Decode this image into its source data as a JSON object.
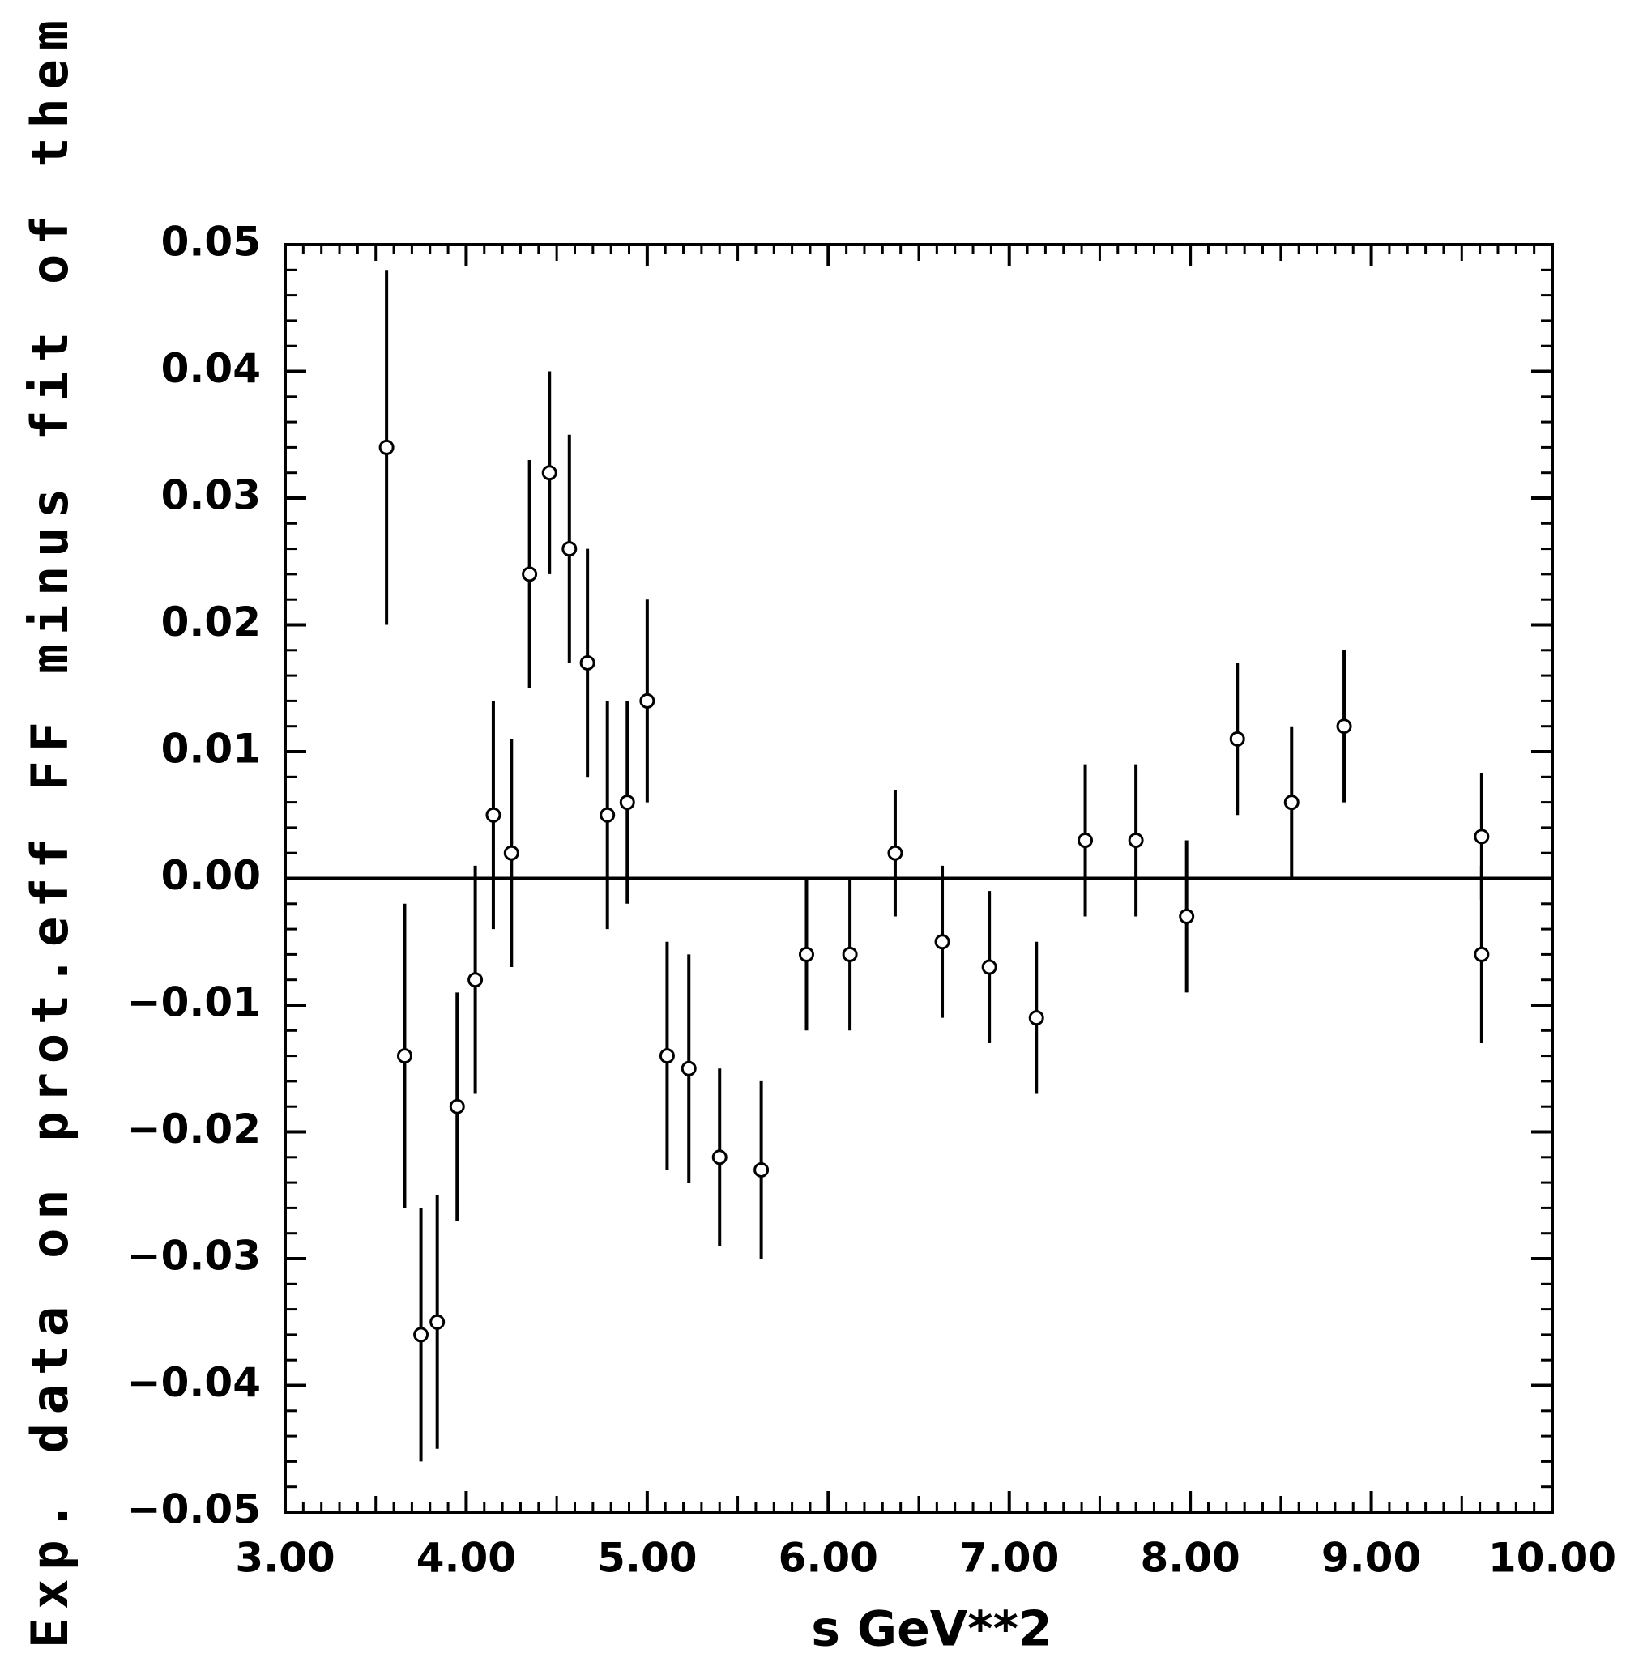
{
  "chart_data": {
    "type": "scatter",
    "x_label": "s GeV**2",
    "y_label": "Exp. data on prot.eff FF minus fit of them",
    "xlim": [
      3,
      10
    ],
    "ylim": [
      -0.05,
      0.05
    ],
    "xticks": [
      {
        "value": 3,
        "label": "3.00"
      },
      {
        "value": 4,
        "label": "4.00"
      },
      {
        "value": 5,
        "label": "5.00"
      },
      {
        "value": 6,
        "label": "6.00"
      },
      {
        "value": 7,
        "label": "7.00"
      },
      {
        "value": 8,
        "label": "8.00"
      },
      {
        "value": 9,
        "label": "9.00"
      },
      {
        "value": 10,
        "label": "10.00"
      }
    ],
    "yticks": [
      {
        "value": -0.05,
        "label": "−0.05"
      },
      {
        "value": -0.04,
        "label": "−0.04"
      },
      {
        "value": -0.03,
        "label": "−0.03"
      },
      {
        "value": -0.02,
        "label": "−0.02"
      },
      {
        "value": -0.01,
        "label": "−0.01"
      },
      {
        "value": 0,
        "label": "0.00"
      },
      {
        "value": 0.01,
        "label": "0.01"
      },
      {
        "value": 0.02,
        "label": "0.02"
      },
      {
        "value": 0.03,
        "label": "0.03"
      },
      {
        "value": 0.04,
        "label": "0.04"
      },
      {
        "value": 0.05,
        "label": "0.05"
      }
    ],
    "color": "#000000",
    "x": [
      3.56,
      3.66,
      3.75,
      3.84,
      3.95,
      4.05,
      4.15,
      4.25,
      4.35,
      4.46,
      4.57,
      4.67,
      4.78,
      4.89,
      5.0,
      5.11,
      5.23,
      5.4,
      5.63,
      5.88,
      6.12,
      6.37,
      6.63,
      6.89,
      7.15,
      7.42,
      7.7,
      7.98,
      8.26,
      8.56,
      8.85,
      9.61,
      9.61
    ],
    "values": [
      0.034,
      -0.014,
      -0.036,
      -0.035,
      -0.018,
      -0.008,
      0.005,
      0.002,
      0.024,
      0.032,
      0.026,
      0.017,
      0.005,
      0.006,
      0.014,
      -0.014,
      -0.015,
      -0.022,
      -0.023,
      -0.006,
      -0.006,
      0.002,
      -0.005,
      -0.007,
      -0.011,
      0.003,
      0.003,
      -0.003,
      0.011,
      0.006,
      0.012,
      0.0033,
      -0.006
    ],
    "errors": [
      0.014,
      0.012,
      0.01,
      0.01,
      0.009,
      0.009,
      0.009,
      0.009,
      0.009,
      0.008,
      0.009,
      0.009,
      0.009,
      0.008,
      0.008,
      0.009,
      0.009,
      0.007,
      0.007,
      0.006,
      0.006,
      0.005,
      0.006,
      0.006,
      0.006,
      0.006,
      0.006,
      0.006,
      0.006,
      0.006,
      0.006,
      0.005,
      0.007
    ]
  }
}
